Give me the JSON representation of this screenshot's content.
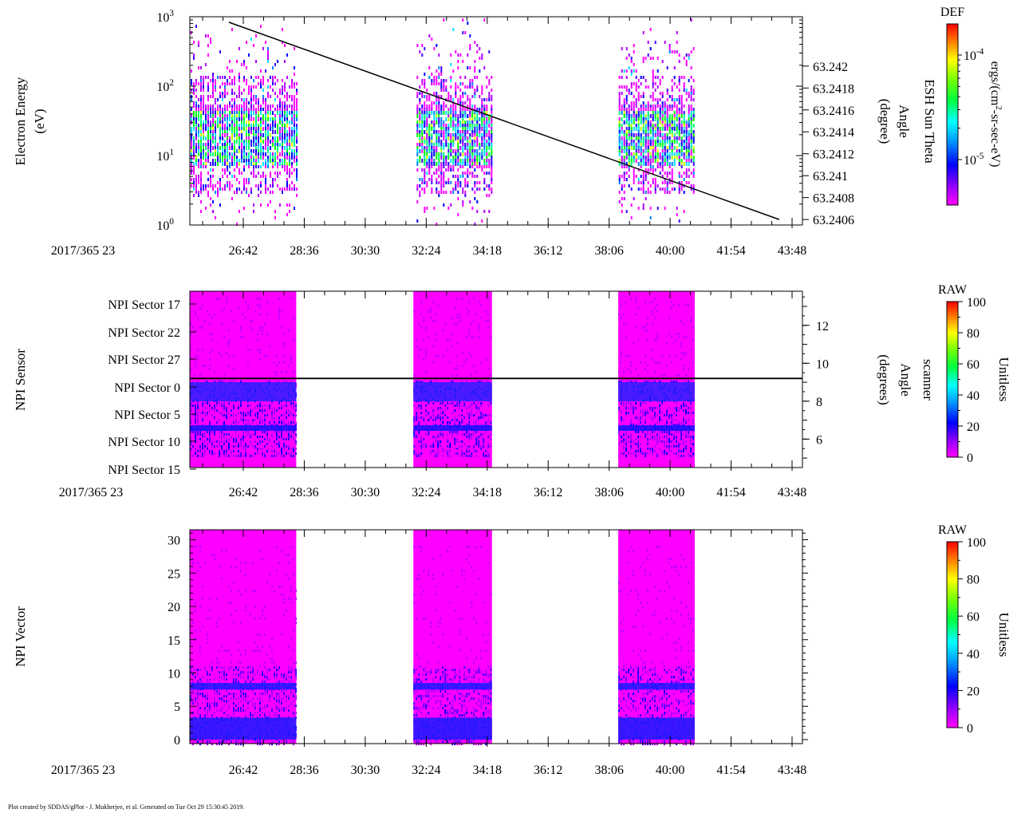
{
  "footer": "Plot created by SDDAS/gPlot - J. Mukherjee, et al.  Generated on Tue Oct 29 15:30:45 2019.",
  "time_axis_labels": [
    "26:42",
    "28:36",
    "30:30",
    "32:24",
    "34:18",
    "36:12",
    "38:06",
    "40:00",
    "41:54",
    "43:48"
  ],
  "colors": {
    "spectrum": [
      "#ff00ff",
      "#b000ff",
      "#4000ff",
      "#0000ff",
      "#0080ff",
      "#00e0ff",
      "#00ff80",
      "#00ff00",
      "#c0ff00",
      "#ffff00",
      "#ffa000",
      "#ff0000"
    ],
    "axis": "#000000"
  },
  "chart_data": [
    {
      "id": "panel1",
      "type": "heatmap",
      "ylabel": [
        "Electron Energy",
        "(eV)"
      ],
      "date_label": "2017/365 23",
      "y_scale": "log",
      "ylim": [
        1,
        1000
      ],
      "y_ticks": [
        {
          "value": 1,
          "base": "10",
          "exp": "0"
        },
        {
          "value": 10,
          "base": "10",
          "exp": "1"
        },
        {
          "value": 100,
          "base": "10",
          "exp": "2"
        },
        {
          "value": 1000,
          "base": "10",
          "exp": "3"
        }
      ],
      "right_axis": {
        "label": [
          "ESH Sun Theta",
          "Angle",
          "(degree)"
        ],
        "ticks": [
          "63.2406",
          "63.2408",
          "63.241",
          "63.2412",
          "63.2414",
          "63.2416",
          "63.2418",
          "63.242"
        ],
        "range": [
          63.24055,
          63.24245
        ]
      },
      "overlay_line": {
        "start": {
          "t": "26:15",
          "value": 63.2424
        },
        "end": {
          "t": "43:24",
          "value": 63.2406
        }
      },
      "colorbar": {
        "title": "DEF",
        "unit_label": [
          "ergs/(cm",
          "2",
          "-sr-sec-eV)"
        ],
        "scale": "log",
        "ticks": [
          {
            "base": "10",
            "exp": "-5"
          },
          {
            "base": "10",
            "exp": "-4"
          }
        ]
      },
      "data_blocks": [
        {
          "start": "25:00",
          "end": "28:22"
        },
        {
          "start": "32:06",
          "end": "34:28"
        },
        {
          "start": "38:24",
          "end": "40:44"
        }
      ]
    },
    {
      "id": "panel2",
      "type": "heatmap",
      "ylabel": [
        "NPI Sensor"
      ],
      "date_label": "2017/365 23",
      "y_ticks": [
        "NPI Sector 17",
        "NPI Sector 22",
        "NPI Sector 27",
        "NPI Sector 0",
        "NPI Sector 5",
        "NPI Sector 10",
        "NPI Sector 15"
      ],
      "right_axis": {
        "label": [
          "scanner",
          "Angle",
          "(degrees)"
        ],
        "ticks": [
          "6",
          "8",
          "10",
          "12"
        ],
        "range": [
          4.5,
          13.8
        ]
      },
      "overlay_line": {
        "value": 9.2
      },
      "colorbar": {
        "title": "RAW",
        "unit_label": [
          "Unitless"
        ],
        "ticks": [
          "0",
          "20",
          "40",
          "60",
          "80",
          "100"
        ],
        "range": [
          0,
          100
        ]
      },
      "data_blocks": [
        {
          "start": "25:00",
          "end": "28:21"
        },
        {
          "start": "32:00",
          "end": "34:27"
        },
        {
          "start": "38:23",
          "end": "40:46"
        }
      ]
    },
    {
      "id": "panel3",
      "type": "heatmap",
      "ylabel": [
        "NPI Vector"
      ],
      "date_label": "2017/365 23",
      "ylim": [
        -0.6,
        31.5
      ],
      "y_ticks": [
        "0",
        "5",
        "10",
        "15",
        "20",
        "25",
        "30"
      ],
      "colorbar": {
        "title": "RAW",
        "unit_label": [
          "Unitless"
        ],
        "ticks": [
          "0",
          "20",
          "40",
          "60",
          "80",
          "100"
        ],
        "range": [
          0,
          100
        ]
      },
      "data_blocks": [
        {
          "start": "25:00",
          "end": "28:21"
        },
        {
          "start": "32:00",
          "end": "34:27"
        },
        {
          "start": "38:23",
          "end": "40:46"
        }
      ]
    }
  ]
}
